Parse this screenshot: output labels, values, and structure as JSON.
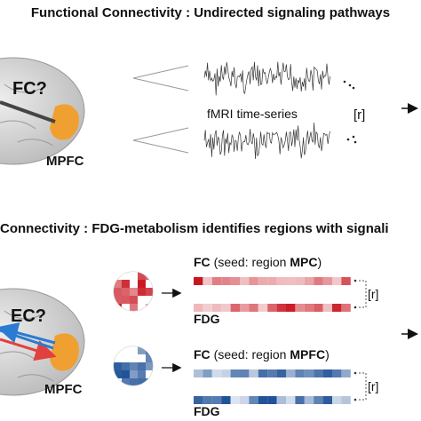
{
  "top": {
    "title": "Functional Connectivity : Undirected signaling pathways",
    "brain_label": "FC?",
    "region": "MPFC",
    "series_label": "fMRI time-series",
    "corr": "[r]"
  },
  "bottom": {
    "title": "Connectivity : FDG-metabolism identifies regions with signali",
    "brain_label": "EC?",
    "region": "MPFC",
    "rows": [
      {
        "fc": "FC",
        "seed": "(seed: region",
        "region": "MPC",
        "close": ")",
        "fdg": "FDG",
        "corr": "[r]"
      },
      {
        "fc": "FC",
        "seed": "(seed: region",
        "region": "MPFC",
        "close": ")",
        "fdg": "FDG",
        "corr": "[r]"
      }
    ]
  }
}
